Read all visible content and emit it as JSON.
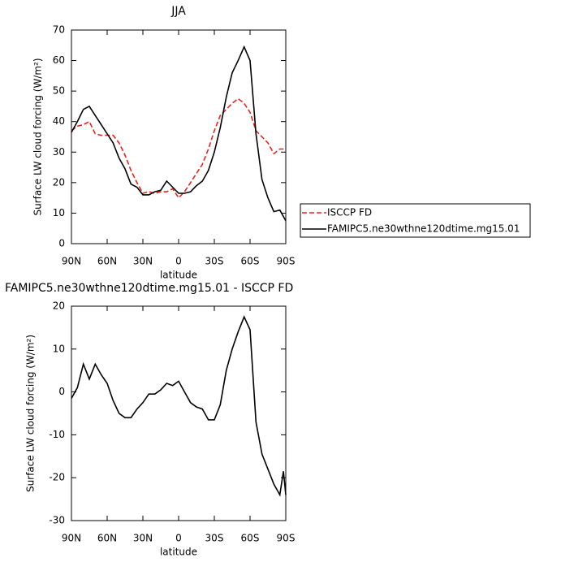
{
  "chart_data": [
    {
      "type": "line",
      "title": "JJA",
      "xlabel": "latitude",
      "ylabel": "Surface LW cloud forcing (W/m²)",
      "x": [
        90,
        85,
        80,
        75,
        70,
        65,
        60,
        55,
        50,
        45,
        40,
        35,
        30,
        25,
        20,
        15,
        10,
        5,
        0,
        -5,
        -10,
        -15,
        -20,
        -25,
        -30,
        -35,
        -40,
        -45,
        -50,
        -55,
        -60,
        -65,
        -70,
        -75,
        -80,
        -85,
        -90
      ],
      "series": [
        {
          "name": "ISCCP FD",
          "color": "#e8231f",
          "dash": true,
          "values": [
            37,
            38.5,
            39,
            40,
            36,
            35.5,
            35.5,
            35.5,
            33,
            29,
            24,
            20,
            16.5,
            17,
            16.5,
            17,
            17,
            18,
            15,
            17,
            20,
            23,
            26,
            31,
            37,
            42,
            44,
            46,
            47.5,
            46,
            43,
            37,
            35,
            33,
            29.5,
            31,
            31
          ]
        },
        {
          "name": "FAMIPC5.ne30wthne120dtime.mg15.01",
          "color": "#000000",
          "dash": false,
          "values": [
            36.5,
            40,
            44,
            45,
            42,
            39,
            36,
            33,
            28,
            24.5,
            19.5,
            18.5,
            16,
            16,
            17,
            17.5,
            20.5,
            18.5,
            16.5,
            16.5,
            17,
            19,
            20.5,
            24,
            30,
            38,
            48,
            56,
            60,
            64.5,
            60,
            36,
            21,
            15,
            10.5,
            11,
            7.5
          ]
        }
      ],
      "xlim": [
        90,
        -90
      ],
      "ylim": [
        0,
        70
      ],
      "xticks": [
        {
          "value": 90,
          "label": "90N"
        },
        {
          "value": 60,
          "label": "60N"
        },
        {
          "value": 30,
          "label": "30N"
        },
        0,
        {
          "value": -30,
          "label": "30S"
        },
        {
          "value": -60,
          "label": "60S"
        },
        {
          "value": -90,
          "label": "90S"
        }
      ],
      "yticks": [
        0,
        10,
        20,
        30,
        40,
        50,
        60,
        70
      ],
      "legend_loc": "right"
    },
    {
      "type": "line",
      "title": "FAMIPC5.ne30wthne120dtime.mg15.01 - ISCCP FD",
      "xlabel": "latitude",
      "ylabel": "Surface LW cloud forcing (W/m²)",
      "x": [
        90,
        85,
        80,
        75,
        70,
        65,
        60,
        55,
        50,
        45,
        40,
        35,
        30,
        25,
        20,
        15,
        10,
        5,
        0,
        -5,
        -10,
        -15,
        -20,
        -25,
        -30,
        -35,
        -40,
        -45,
        -50,
        -55,
        -60,
        -65,
        -70,
        -75,
        -80,
        -85,
        -88,
        -90
      ],
      "series": [
        {
          "color": "#000000",
          "dash": false,
          "values": [
            -1.5,
            1,
            6.5,
            3,
            6.5,
            4,
            2,
            -2,
            -5,
            -6,
            -6,
            -4,
            -2.5,
            -0.5,
            -0.5,
            0.5,
            2,
            1.5,
            2.5,
            0,
            -2.5,
            -3.5,
            -4,
            -6.5,
            -6.5,
            -3,
            5,
            10,
            14,
            17.5,
            14.5,
            -7,
            -14.5,
            -18,
            -21.5,
            -24,
            -18.5,
            -24
          ]
        }
      ],
      "xlim": [
        90,
        -90
      ],
      "ylim": [
        -30,
        20
      ],
      "xticks": [
        {
          "value": 90,
          "label": "90N"
        },
        {
          "value": 60,
          "label": "60N"
        },
        {
          "value": 30,
          "label": "30N"
        },
        0,
        {
          "value": -30,
          "label": "30S"
        },
        {
          "value": -60,
          "label": "60S"
        },
        {
          "value": -90,
          "label": "90S"
        }
      ],
      "yticks": [
        -30,
        -20,
        -10,
        0,
        10,
        20
      ]
    }
  ]
}
